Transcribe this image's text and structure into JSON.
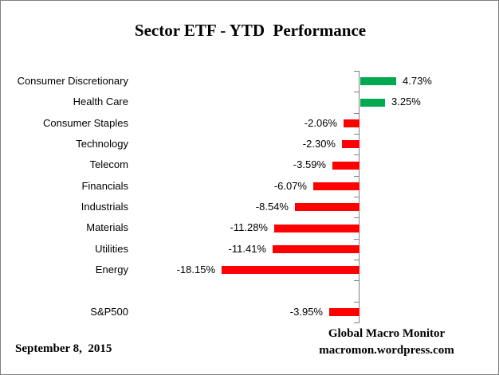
{
  "title": "Sector ETF - YTD  Performance",
  "footer": {
    "date": "September 8,  2015",
    "source_line1": "Global Macro Monitor",
    "source_line2": "macromon.wordpress.com"
  },
  "colors": {
    "positive_bar": "#00A850",
    "negative_bar": "#FF0000",
    "axis": "#808080",
    "frame_border": "#808080",
    "text": "#000000",
    "background": "#FFFFFF"
  },
  "chart_data": {
    "type": "bar",
    "orientation": "horizontal",
    "title": "Sector ETF - YTD  Performance",
    "value_unit": "%",
    "xlim": [
      -20,
      6
    ],
    "gridlines": false,
    "legend": "none",
    "categories": [
      "Consumer Discretionary",
      "Health Care",
      "Consumer Staples",
      "Technology",
      "Telecom",
      "Financials",
      "Industrials",
      "Materials",
      "Utilities",
      "Energy",
      "",
      "S&P500"
    ],
    "values": [
      4.73,
      3.25,
      -2.06,
      -2.3,
      -3.59,
      -6.07,
      -8.54,
      -11.28,
      -11.41,
      -18.15,
      null,
      -3.95
    ],
    "value_labels": [
      "4.73%",
      "3.25%",
      "-2.06%",
      "-2.30%",
      "-3.59%",
      "-6.07%",
      "-8.54%",
      "-11.28%",
      "-11.41%",
      "-18.15%",
      "",
      "-3.95%"
    ]
  }
}
